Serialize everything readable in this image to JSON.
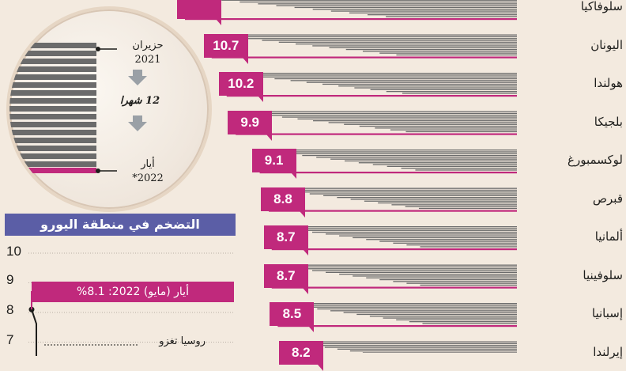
{
  "colors": {
    "magenta": "#c0297c",
    "bar_gray": "#6b6b6b",
    "header_purple": "#5b5ea6"
  },
  "chart_data": [
    {
      "type": "bar",
      "title": "",
      "categories": [
        "سلوفاكيا",
        "اليونان",
        "هولندا",
        "بلجيكا",
        "لوكسمبورغ",
        "قبرص",
        "ألمانيا",
        "سلوفينيا",
        "إسبانيا",
        "إيرلندا"
      ],
      "values": [
        null,
        10.7,
        10.2,
        9.9,
        9.1,
        8.8,
        8.7,
        8.7,
        8.5,
        8.2
      ],
      "value_labels": [
        "",
        "10.7",
        "10.2",
        "9.9",
        "9.1",
        "8.8",
        "8.7",
        "8.7",
        "8.5",
        "8.2"
      ],
      "months_shown": 12
    },
    {
      "type": "line",
      "title": "التضخم في منطقة اليورو",
      "y_ticks": [
        "10",
        "9",
        "8",
        "7"
      ],
      "ylim": [
        7,
        10
      ],
      "annotations": [
        {
          "label": "أيار (مايو) 2022: 8.1%",
          "value": 8.1
        },
        {
          "label": "روسيا تغزو"
        }
      ]
    }
  ],
  "legend": {
    "start_month": "حزيران",
    "start_year": "2021",
    "duration": "12 شهرا",
    "end_month": "أيار",
    "end_year": "2022*"
  }
}
